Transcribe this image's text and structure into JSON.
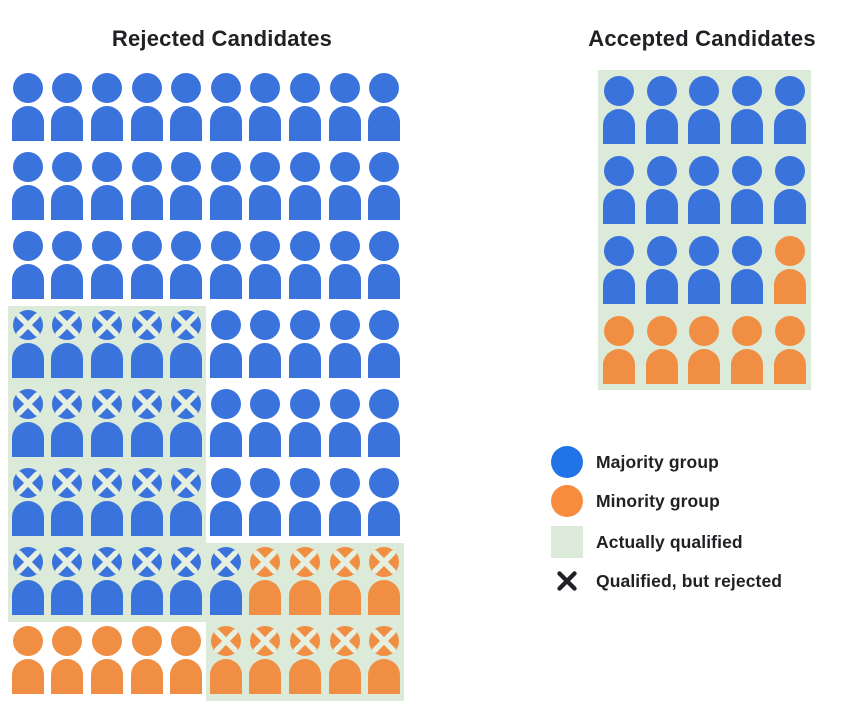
{
  "colors": {
    "majority_icon": "#3B73DC",
    "minority_icon": "#F08E44",
    "legend_majority": "#2273E6",
    "legend_minority": "#F78C3E",
    "qualified_bg": "#DCEAD9",
    "icon_x_mark": "#E6F0E1",
    "legend_x_mark": "#202124",
    "text": "#202124"
  },
  "cell_code_key": {
    "b": "majority (blue) person",
    "o": "minority (orange) person",
    "x": "has X mark (qualified, but rejected)",
    "g": "on green background (actually qualified)"
  },
  "grids": {
    "rejected": {
      "title": "Rejected Candidates",
      "columns": 10,
      "rows": [
        [
          "b",
          "b",
          "b",
          "b",
          "b",
          "b",
          "b",
          "b",
          "b",
          "b"
        ],
        [
          "b",
          "b",
          "b",
          "b",
          "b",
          "b",
          "b",
          "b",
          "b",
          "b"
        ],
        [
          "b",
          "b",
          "b",
          "b",
          "b",
          "b",
          "b",
          "b",
          "b",
          "b"
        ],
        [
          "bxg",
          "bxg",
          "bxg",
          "bxg",
          "bxg",
          "b",
          "b",
          "b",
          "b",
          "b"
        ],
        [
          "bxg",
          "bxg",
          "bxg",
          "bxg",
          "bxg",
          "b",
          "b",
          "b",
          "b",
          "b"
        ],
        [
          "bxg",
          "bxg",
          "bxg",
          "bxg",
          "bxg",
          "b",
          "b",
          "b",
          "b",
          "b"
        ],
        [
          "bxg",
          "bxg",
          "bxg",
          "bxg",
          "bxg",
          "bxg",
          "oxg",
          "oxg",
          "oxg",
          "oxg"
        ],
        [
          "o",
          "o",
          "o",
          "o",
          "o",
          "oxg",
          "oxg",
          "oxg",
          "oxg",
          "oxg"
        ]
      ]
    },
    "accepted": {
      "title": "Accepted Candidates",
      "columns": 5,
      "rows": [
        [
          "bg",
          "bg",
          "bg",
          "bg",
          "bg"
        ],
        [
          "bg",
          "bg",
          "bg",
          "bg",
          "bg"
        ],
        [
          "bg",
          "bg",
          "bg",
          "bg",
          "og"
        ],
        [
          "og",
          "og",
          "og",
          "og",
          "og"
        ]
      ]
    }
  },
  "legend": {
    "items": [
      {
        "swatch": "majority-circle",
        "label": "Majority group"
      },
      {
        "swatch": "minority-circle",
        "label": "Minority group"
      },
      {
        "swatch": "qualified-square",
        "label": "Actually qualified"
      },
      {
        "swatch": "x-mark",
        "label": "Qualified, but rejected"
      }
    ]
  }
}
